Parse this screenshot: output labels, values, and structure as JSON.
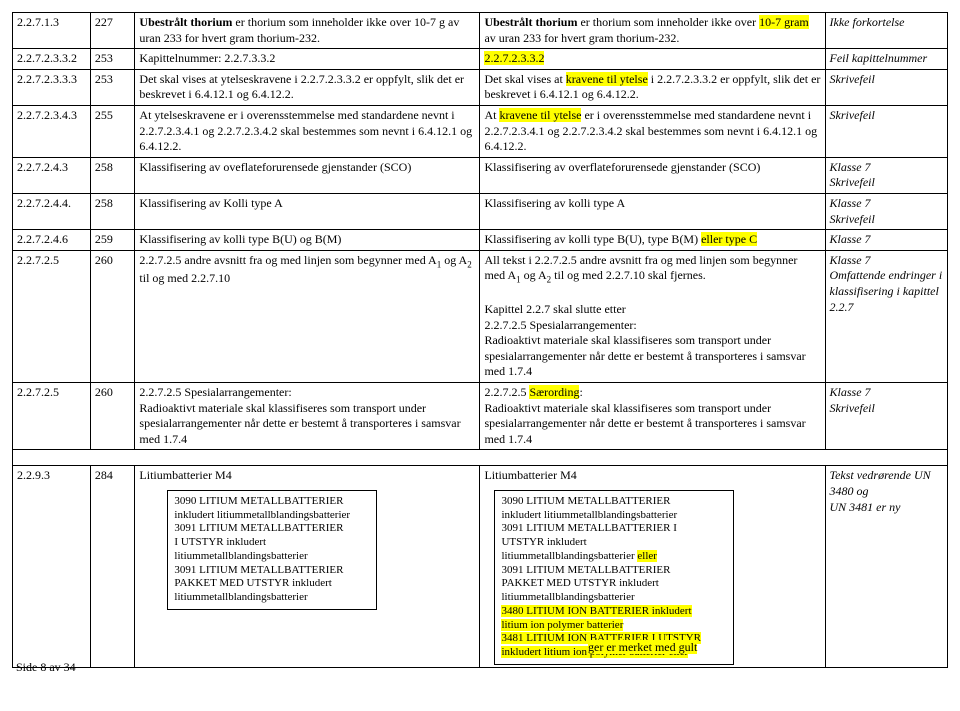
{
  "rows": [
    {
      "ref": "2.2.7.1.3",
      "page": "227",
      "c3_html": "<span class=\"bold\">Ubestrålt thorium</span> er thorium som inneholder ikke over 10-7 g av uran 233 for hvert gram thorium-232.",
      "c4_html": "<span class=\"bold\">Ubestrålt thorium</span> er thorium som inneholder ikke over <span class=\"hl\">10-7 gram</span> av uran 233 for hvert gram thorium-232.",
      "c5_html": "<span class=\"italic\">Ikke forkortelse</span>"
    },
    {
      "ref": "2.2.7.2.3.3.2",
      "page": "253",
      "c3_html": "Kapittelnummer: 2.2.7.3.3.2",
      "c4_html": "<span class=\"hl\">2.2.7.2.3.3.2</span>",
      "c5_html": "<span class=\"italic\">Feil kapittelnummer</span>"
    },
    {
      "ref": "2.2.7.2.3.3.3",
      "page": "253",
      "c3_html": "Det skal vises at ytelseskravene i 2.2.7.2.3.3.2 er oppfylt, slik det er beskrevet i 6.4.12.1 og 6.4.12.2.",
      "c4_html": "Det skal vises at <span class=\"hl\">kravene til ytelse</span> i 2.2.7.2.3.3.2 er oppfylt, slik det er beskrevet i 6.4.12.1 og 6.4.12.2.",
      "c5_html": "<span class=\"italic\">Skrivefeil</span>"
    },
    {
      "ref": "2.2.7.2.3.4.3",
      "page": "255",
      "c3_html": "At ytelseskravene er i overensstemmelse med standardene nevnt i 2.2.7.2.3.4.1 og 2.2.7.2.3.4.2 skal bestemmes som nevnt i 6.4.12.1 og 6.4.12.2.",
      "c4_html": "At <span class=\"hl\">kravene til ytelse</span> er i overensstemmelse med standardene nevnt i 2.2.7.2.3.4.1 og 2.2.7.2.3.4.2 skal bestemmes som nevnt i 6.4.12.1 og 6.4.12.2.",
      "c5_html": "<span class=\"italic\">Skrivefeil</span>"
    },
    {
      "ref": "2.2.7.2.4.3",
      "page": "258",
      "c3_html": "Klassifisering av oveflateforurensede gjenstander (SCO)",
      "c4_html": "Klassifisering av overflateforurensede gjenstander (SCO)",
      "c5_html": "<span class=\"italic\">Klasse 7<br>Skrivefeil</span>"
    },
    {
      "ref": "2.2.7.2.4.4.",
      "page": "258",
      "c3_html": "Klassifisering av Kolli type A",
      "c4_html": "Klassifisering av kolli type A",
      "c5_html": "<span class=\"italic\">Klasse 7<br>Skrivefeil</span>"
    },
    {
      "ref": "2.2.7.2.4.6",
      "page": "259",
      "c3_html": "Klassifisering av kolli type B(U) og B(M)",
      "c4_html": "Klassifisering av kolli type B(U), type B(M) <span class=\"hl\">eller type C</span>",
      "c5_html": "<span class=\"italic\">Klasse 7</span>"
    },
    {
      "ref": "2.2.7.2.5",
      "page": "260",
      "c3_html": "2.2.7.2.5 andre avsnitt fra og med linjen som begynner med A<sub>1</sub> og A<sub>2</sub> til og med 2.2.7.10",
      "c4_html": "All tekst i 2.2.7.2.5 andre avsnitt fra og med linjen som begynner med A<sub>1</sub> og A<sub>2</sub> til og med 2.2.7.10 skal fjernes.<br><br>Kapittel 2.2.7 skal slutte etter<br>2.2.7.2.5 Spesialarrangementer:<br>Radioaktivt materiale skal klassifiseres som transport under spesialarrangementer når dette er bestemt å transporteres i samsvar med 1.7.4",
      "c5_html": "<span class=\"italic\">Klasse 7<br>Omfattende endringer i klassifisering i kapittel 2.2.7</span>"
    },
    {
      "ref": "2.2.7.2.5",
      "page": "260",
      "c3_html": "2.2.7.2.5 Spesialarrangementer:<br>Radioaktivt materiale skal klassifiseres som transport under spesialarrangementer når dette er bestemt å transporteres i samsvar med 1.7.4",
      "c4_html": "2.2.7.2.5 <span class=\"hl\">Særording</span>:<br>Radioaktivt materiale skal klassifiseres som transport under spesialarrangementer når dette er bestemt å transporteres i samsvar med 1.7.4",
      "c5_html": "<span class=\"italic\">Klasse 7<br>Skrivefeil</span>"
    }
  ],
  "gapRow": {
    "colspan": 5
  },
  "lithiumRow": {
    "ref": "2.2.9.3",
    "page": "284",
    "c3_title": "Litiumbatterier M4",
    "c3_box_html": "3090 LITIUM METALLBATTERIER<br>inkludert litiummetallblandingsbatterier<br>3091 LITIUM METALLBATTERIER<br>I UTSTYR inkludert<br>litiummetallblandingsbatterier<br>3091 LITIUM METALLBATTERIER<br>PAKKET MED  UTSTYR inkludert<br>litiummetallblandingsbatterier",
    "c4_title": "Litiumbatterier M4",
    "c4_box_html": "3090 LITIUM METALLBATTERIER<br>inkludert litiummetallblandingsbatterier<br>3091 LITIUM METALLBATTERIER  I<br>UTSTYR inkludert<br>litiummetallblandingsbatterier <span class=\"hl\">eller</span><br>3091 LITIUM METALLBATTERIER<br>PAKKET MED  UTSTYR inkludert<br>litiummetallblandingsbatterier<br><span class=\"hl\">3480 LITIUM ION BATTERIER inkludert<br>litium ion polymer batterier<br>3481 LITIUM ION BATTERIER I UTSTYR<br>inkludert litium ion polymer batterier eller</span>",
    "c5_html": "<span class=\"italic\">Tekst vedrørende UN 3480 og<br>UN 3481 er ny</span>"
  },
  "strayRight": "ger er merket med gult",
  "pageNum": "Side 8 av 34"
}
